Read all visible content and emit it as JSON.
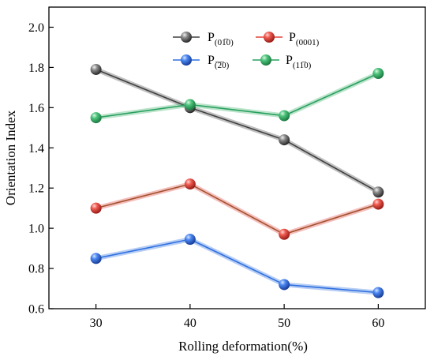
{
  "chart_data": {
    "type": "line",
    "xlabel": "Rolling deformation(%)",
    "ylabel": "Orientation Index",
    "x": [
      30,
      40,
      50,
      60
    ],
    "xlim": [
      25,
      65
    ],
    "ylim": [
      0.6,
      2.1
    ],
    "xticks": [
      30,
      40,
      50,
      60
    ],
    "yticks": [
      0.6,
      0.8,
      1.0,
      1.2,
      1.4,
      1.6,
      1.8,
      2.0
    ],
    "x_tick_labels": [
      "30",
      "40",
      "50",
      "60"
    ],
    "y_tick_labels": [
      "0.6",
      "0.8",
      "1.0",
      "1.2",
      "1.4",
      "1.6",
      "1.8",
      "2.0"
    ],
    "grid": false,
    "legend_position": "top-center",
    "series": [
      {
        "name": "P(01-10)",
        "label_main": "P",
        "label_sub": "(01̅0)",
        "color": "#4a4a4a",
        "line_color": "#404040",
        "values": [
          1.79,
          1.6,
          1.44,
          1.18
        ]
      },
      {
        "name": "P(0001)",
        "label_main": "P",
        "label_sub": "(0001)",
        "color": "#e2433c",
        "line_color": "#a0522d",
        "values": [
          1.1,
          1.22,
          0.97,
          1.12
        ]
      },
      {
        "name": "P(-12-10)",
        "label_main": "P",
        "label_sub": "(̅2̅0)",
        "color": "#2f6fe0",
        "line_color": "#2f6fe0",
        "values": [
          0.85,
          0.945,
          0.72,
          0.68
        ]
      },
      {
        "name": "P(11-20)",
        "label_main": "P",
        "label_sub": "(11̅0)",
        "color": "#3db36a",
        "line_color": "#2aa060",
        "values": [
          1.55,
          1.615,
          1.56,
          1.77
        ]
      }
    ]
  }
}
